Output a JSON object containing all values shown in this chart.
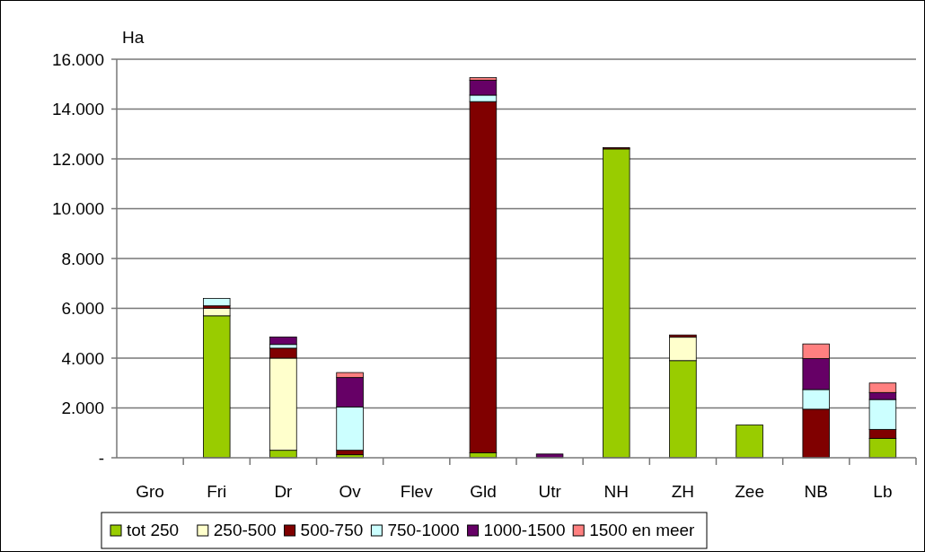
{
  "chart_data": {
    "type": "bar",
    "stacked": true,
    "ylabel": "Ha",
    "categories": [
      "Gro",
      "Fri",
      "Dr",
      "Ov",
      "Flev",
      "Gld",
      "Utr",
      "NH",
      "ZH",
      "Zee",
      "NB",
      "Lb"
    ],
    "series": [
      {
        "name": "tot 250",
        "color": "#99cc00",
        "values": [
          0,
          5700,
          300,
          120,
          0,
          200,
          0,
          12400,
          3900,
          1320,
          null,
          780
        ]
      },
      {
        "name": "250-500",
        "color": "#ffffcc",
        "values": [
          0,
          300,
          3700,
          0,
          0,
          0,
          0,
          0,
          940,
          0,
          0,
          0
        ]
      },
      {
        "name": "500-750",
        "color": "#800000",
        "values": [
          0,
          100,
          400,
          180,
          0,
          14100,
          0,
          50,
          90,
          0,
          1950,
          360
        ]
      },
      {
        "name": "750-1000",
        "color": "#ccffff",
        "values": [
          0,
          300,
          150,
          1740,
          0,
          260,
          0,
          0,
          0,
          0,
          790,
          1200
        ]
      },
      {
        "name": "1000-1500",
        "color": "#660066",
        "values": [
          0,
          0,
          300,
          1180,
          0,
          600,
          150,
          0,
          0,
          0,
          1240,
          280
        ]
      },
      {
        "name": "1500 en meer",
        "color": "#ff8080",
        "values": [
          0,
          0,
          0,
          200,
          0,
          100,
          0,
          0,
          0,
          0,
          590,
          380
        ]
      }
    ],
    "ylim": [
      0,
      16000
    ],
    "yticks": [
      {
        "value": 0,
        "label": "-"
      },
      {
        "value": 2000,
        "label": "2.000"
      },
      {
        "value": 4000,
        "label": "4.000"
      },
      {
        "value": 6000,
        "label": "6.000"
      },
      {
        "value": 8000,
        "label": "8.000"
      },
      {
        "value": 10000,
        "label": "10.000"
      },
      {
        "value": 12000,
        "label": "12.000"
      },
      {
        "value": 14000,
        "label": "14.000"
      },
      {
        "value": 16000,
        "label": "16.000"
      }
    ],
    "grid": "y",
    "legend": "bottom"
  }
}
